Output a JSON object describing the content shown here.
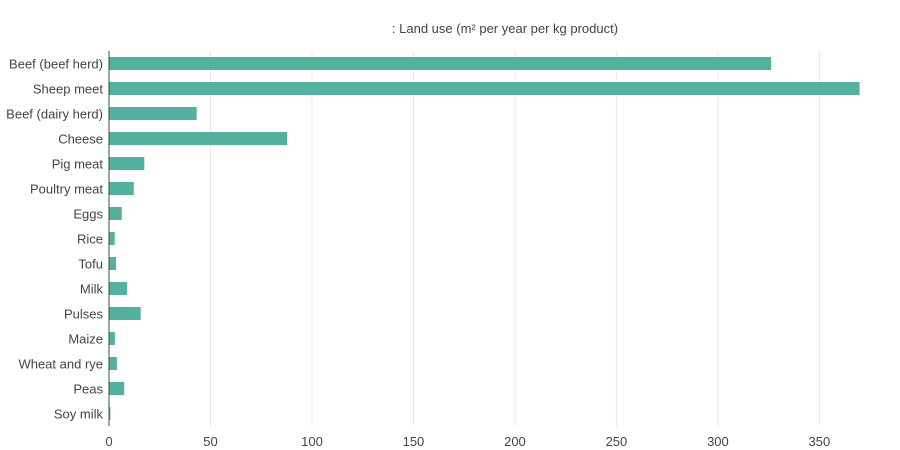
{
  "chart_data": {
    "type": "bar",
    "orientation": "horizontal",
    "title": ": Land use (m² per year per kg product)",
    "categories": [
      "Beef (beef herd)",
      "Sheep meet",
      "Beef (dairy herd)",
      "Cheese",
      "Pig meat",
      "Poultry meat",
      "Eggs",
      "Rice",
      "Tofu",
      "Milk",
      "Pulses",
      "Maize",
      "Wheat and rye",
      "Peas",
      "Soy milk"
    ],
    "values": [
      326.2,
      369.8,
      43.2,
      87.8,
      17.4,
      12.2,
      6.3,
      2.8,
      3.5,
      8.9,
      15.6,
      2.9,
      3.9,
      7.5,
      0.7
    ],
    "xlim": [
      0,
      370
    ],
    "xticks": [
      0,
      50,
      100,
      150,
      200,
      250,
      300,
      350
    ],
    "xlabel": "",
    "ylabel": "",
    "grid": "vertical",
    "legend": "none",
    "bar_color": "#52b19f"
  }
}
